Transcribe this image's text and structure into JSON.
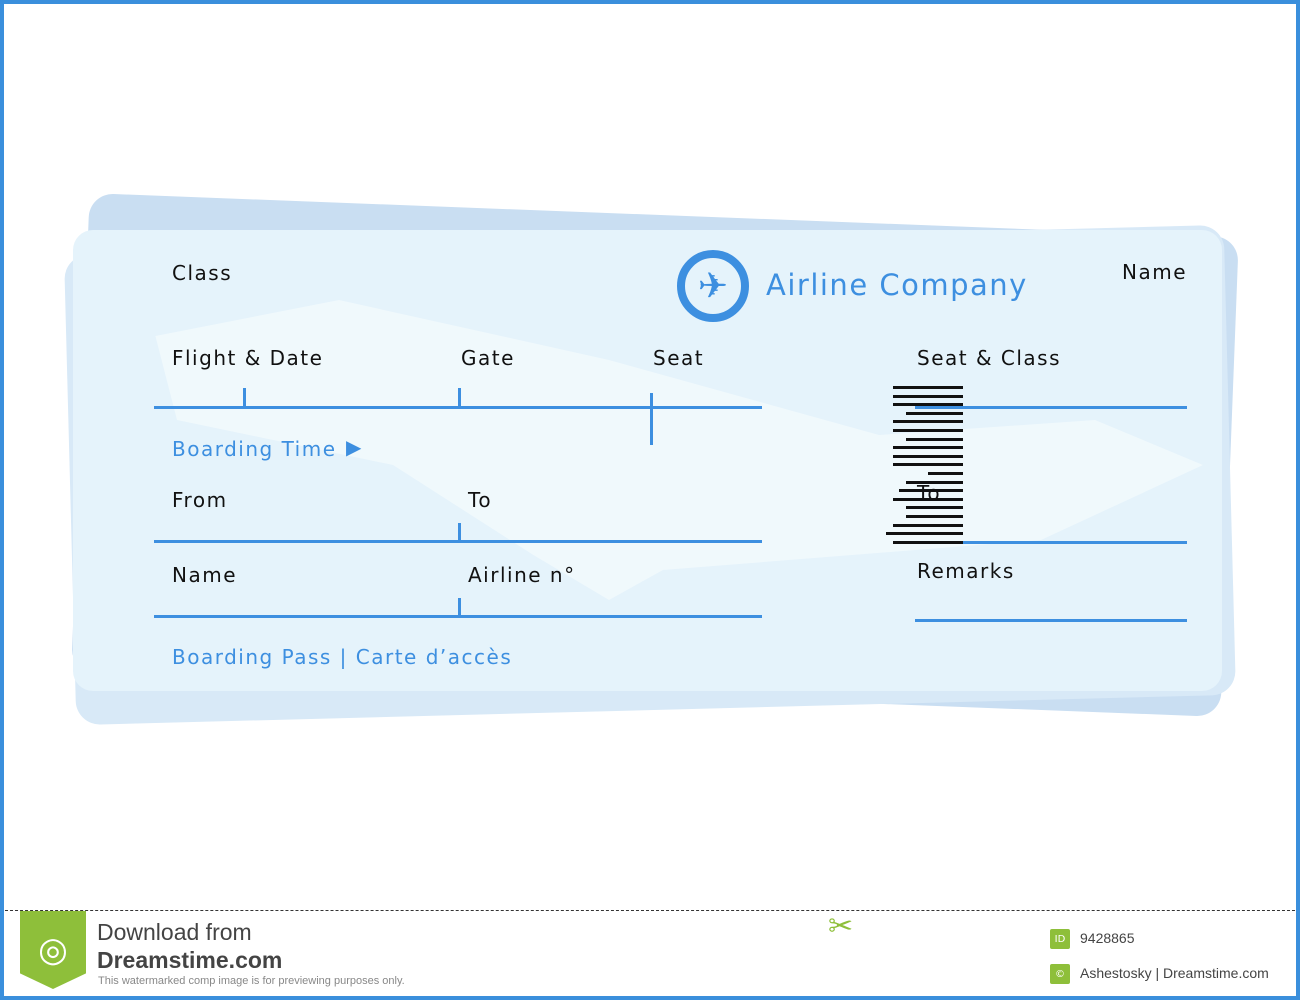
{
  "ticket": {
    "class_label": "Class",
    "airline_name": "Airline Company",
    "name_label_top": "Name",
    "flight_date_label": "Flight & Date",
    "gate_label": "Gate",
    "seat_label": "Seat",
    "seat_class_label": "Seat & Class",
    "boarding_time_label": "Boarding Time",
    "from_label": "From",
    "to_label": "To",
    "to_label_stub": "To",
    "name_label": "Name",
    "airline_no_label": "Airline n°",
    "remarks_label": "Remarks",
    "footer_label": "Boarding Pass | Carte d’accès",
    "logo_icon": "airplane-icon",
    "accent_color": "#3d8fe0",
    "background_color": "#e5f3fb"
  },
  "watermark": {
    "download_from": "Download from",
    "site": "Dreamstime.com",
    "notice": "This watermarked comp image is for previewing purposes only.",
    "id_badge": "ID",
    "image_id": "9428865",
    "copyright_symbol": "©",
    "credit": "Ashestosky | Dreamstime.com",
    "brand_color": "#8ebf3a"
  }
}
